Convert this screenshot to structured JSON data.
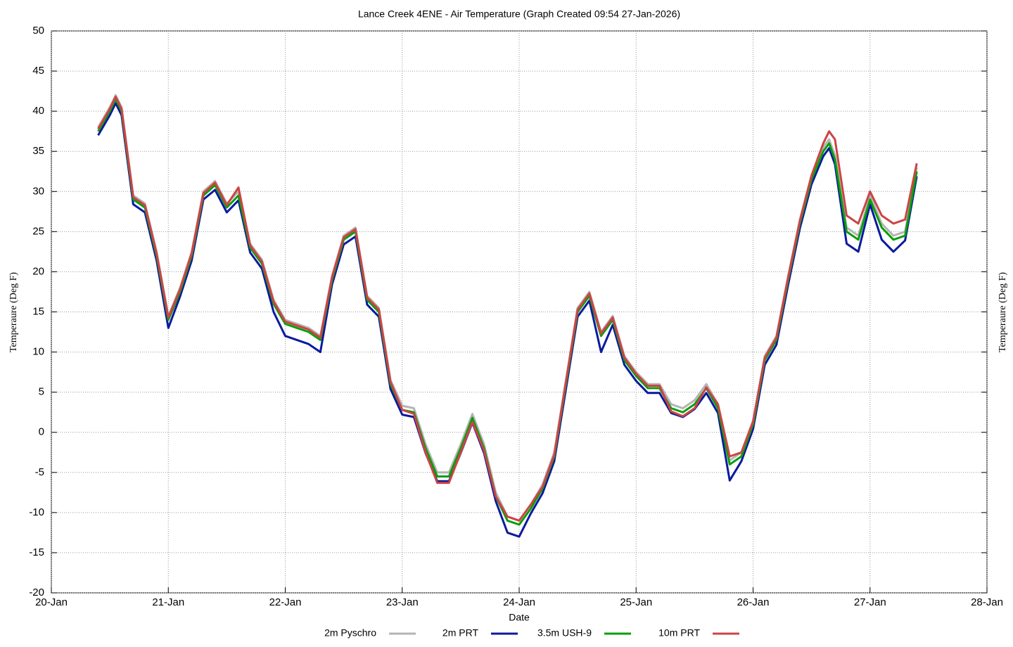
{
  "chart_data": {
    "type": "line",
    "title": "Lance Creek 4ENE - Air Temperature (Graph Created 09:54 27-Jan-2026)",
    "xlabel": "Date",
    "ylabel": "Temperaure (Deg F)",
    "y2label": "Temperaure (Deg F)",
    "xlim": [
      20,
      28
    ],
    "xticks": [
      {
        "value": 20,
        "label": "20-Jan"
      },
      {
        "value": 21,
        "label": "21-Jan"
      },
      {
        "value": 22,
        "label": "22-Jan"
      },
      {
        "value": 23,
        "label": "23-Jan"
      },
      {
        "value": 24,
        "label": "24-Jan"
      },
      {
        "value": 25,
        "label": "25-Jan"
      },
      {
        "value": 26,
        "label": "26-Jan"
      },
      {
        "value": 27,
        "label": "27-Jan"
      },
      {
        "value": 28,
        "label": "28-Jan"
      }
    ],
    "ylim": [
      -20,
      50
    ],
    "yticks": [
      -20,
      -15,
      -10,
      -5,
      0,
      5,
      10,
      15,
      20,
      25,
      30,
      35,
      40,
      45,
      50
    ],
    "grid": true,
    "legend": "bottom",
    "x": [
      20.4,
      20.5,
      20.55,
      20.6,
      20.7,
      20.8,
      20.9,
      21.0,
      21.1,
      21.2,
      21.3,
      21.4,
      21.5,
      21.6,
      21.7,
      21.8,
      21.9,
      22.0,
      22.1,
      22.2,
      22.3,
      22.4,
      22.5,
      22.6,
      22.7,
      22.8,
      22.9,
      23.0,
      23.1,
      23.2,
      23.3,
      23.4,
      23.5,
      23.6,
      23.7,
      23.8,
      23.9,
      24.0,
      24.1,
      24.2,
      24.3,
      24.4,
      24.5,
      24.6,
      24.7,
      24.8,
      24.9,
      25.0,
      25.1,
      25.2,
      25.3,
      25.4,
      25.5,
      25.6,
      25.7,
      25.8,
      25.9,
      26.0,
      26.1,
      26.2,
      26.3,
      26.4,
      26.5,
      26.6,
      26.65,
      26.7,
      26.8,
      26.9,
      27.0,
      27.1,
      27.2,
      27.3,
      27.4
    ],
    "series": [
      {
        "name": "2m Pyschro",
        "color": "#b4b4b4",
        "values": [
          38,
          40.5,
          42,
          40.5,
          29.5,
          28.5,
          22.5,
          14.5,
          18,
          22.5,
          30,
          31.3,
          28.5,
          30,
          23.5,
          21.5,
          16.5,
          14,
          13.5,
          13,
          12,
          19.5,
          24.5,
          25.5,
          17,
          15.5,
          6.5,
          3.3,
          3,
          -1.5,
          -5,
          -5,
          -1.5,
          2.3,
          -1.5,
          -7.5,
          -10.5,
          -11,
          -9,
          -6.5,
          -2.5,
          6.5,
          15.5,
          17.5,
          12.5,
          14.5,
          9.5,
          7.5,
          6,
          6,
          3.5,
          3,
          4,
          6,
          3.5,
          -3.5,
          -2.5,
          1.5,
          9.5,
          12,
          19.5,
          26.5,
          32,
          35.5,
          36.5,
          34.5,
          25.5,
          24.5,
          29.5,
          26,
          24.5,
          25,
          33
        ]
      },
      {
        "name": "2m PRT",
        "color": "#0a1a9e",
        "values": [
          37,
          39.5,
          41,
          39.5,
          28.4,
          27.4,
          21.4,
          13,
          16.9,
          21.4,
          29,
          30.2,
          27.4,
          28.9,
          22.4,
          20.4,
          15,
          12,
          11.5,
          11,
          10,
          18.4,
          23.4,
          24.4,
          15.9,
          14.4,
          5.4,
          2.2,
          1.9,
          -2.6,
          -6.1,
          -6.1,
          -2.6,
          1.2,
          -2.6,
          -8.6,
          -12.5,
          -13,
          -10.1,
          -7.6,
          -3.6,
          5.4,
          14.4,
          16.4,
          10,
          13.4,
          8.4,
          6.4,
          4.9,
          4.9,
          2.4,
          1.9,
          2.9,
          4.9,
          2.4,
          -6,
          -3.6,
          0.4,
          8.4,
          10.9,
          18.4,
          25.4,
          30.9,
          34.4,
          35.4,
          33.4,
          23.5,
          22.5,
          28.4,
          24,
          22.5,
          23.9,
          31.9
        ]
      },
      {
        "name": "3.5m USH-9",
        "color": "#0a9e0a",
        "values": [
          37.5,
          40,
          41.5,
          40,
          29,
          28,
          22,
          14,
          17.5,
          22,
          29.5,
          30.8,
          28,
          29.5,
          23,
          21,
          16,
          13.5,
          13,
          12.5,
          11.5,
          19,
          24,
          25,
          16.5,
          15,
          6,
          2.8,
          2.5,
          -2,
          -5.5,
          -5.5,
          -2,
          1.8,
          -2,
          -8,
          -11,
          -11.5,
          -9.5,
          -7,
          -3,
          6,
          15,
          17,
          12,
          14,
          9,
          7,
          5.5,
          5.5,
          3,
          2.5,
          3.5,
          5.5,
          3,
          -4,
          -3,
          1,
          9,
          11.5,
          19,
          26,
          31.5,
          35,
          36,
          34,
          25,
          24,
          29,
          25.5,
          24,
          24.5,
          32.5
        ]
      },
      {
        "name": "10m PRT",
        "color": "#cc4444",
        "values": [
          37.8,
          40.3,
          41.8,
          40.3,
          29.3,
          28.3,
          22.3,
          14.3,
          17.8,
          22.3,
          29.8,
          31.1,
          28.3,
          30.5,
          23.3,
          21.3,
          16.3,
          13.8,
          13.3,
          12.8,
          11.8,
          19.3,
          24.3,
          25.3,
          16.8,
          15.3,
          6.3,
          2.8,
          2.3,
          -2.5,
          -6.3,
          -6.3,
          -2.5,
          1.3,
          -2.3,
          -8,
          -10.5,
          -11,
          -9,
          -6.8,
          -2.8,
          6.3,
          15.3,
          17.3,
          12.3,
          14.3,
          9.3,
          7.3,
          5.8,
          5.8,
          2.6,
          2,
          3,
          5.6,
          3.5,
          -3,
          -2.5,
          1.3,
          9.3,
          11.8,
          19.3,
          26.3,
          32,
          36,
          37.5,
          36.5,
          27,
          26,
          30,
          27,
          26,
          26.5,
          33.5
        ]
      }
    ]
  }
}
